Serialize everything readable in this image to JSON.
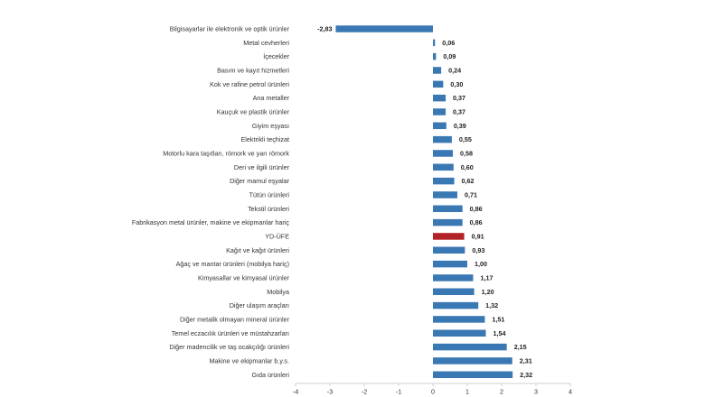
{
  "chart_data": {
    "type": "bar",
    "orientation": "horizontal",
    "title": "",
    "xlabel": "",
    "ylabel": "",
    "xlim": [
      -4,
      4
    ],
    "xticks": [
      -4,
      -3,
      -2,
      -1,
      0,
      1,
      2,
      3,
      4
    ],
    "xtick_labels": [
      "-4",
      "-3",
      "-2",
      "-1",
      "0",
      "1",
      "2",
      "3",
      "4"
    ],
    "grid": false,
    "legend": "none",
    "colors": {
      "default": "#3a78b4",
      "highlight": "#b22126"
    },
    "highlight_category": "YD-ÜFE",
    "categories": [
      "Bilgisayarlar ile elektronik ve optik ürünler",
      "Metal cevherleri",
      "İçecekler",
      "Basım ve kayıt hizmetleri",
      "Kok ve rafine petrol ürünleri",
      "Ana metaller",
      "Kauçuk ve plastik ürünler",
      "Giyim eşyası",
      "Elektrikli teçhizat",
      "Motorlu kara taşıtları, römork ve yarı römork",
      "Deri ve ilgili ürünler",
      "Diğer mamul eşyalar",
      "Tütün ürünleri",
      "Tekstil ürünleri",
      "Fabrikasyon metal ürünler, makine ve ekipmanlar hariç",
      "YD-ÜFE",
      "Kağıt ve kağıt ürünleri",
      "Ağaç ve mantar ürünleri (mobilya hariç)",
      "Kimyasallar ve kimyasal ürünler",
      "Mobilya",
      "Diğer ulaşım araçları",
      "Diğer metalik olmayan mineral ürünler",
      "Temel eczacılık ürünleri ve müstahzarları",
      "Diğer madencilik ve taş ocakçılığı ürünleri",
      "Makine ve ekipmanlar b.y.s.",
      "Gıda ürünleri"
    ],
    "values": [
      -2.83,
      0.06,
      0.09,
      0.24,
      0.3,
      0.37,
      0.37,
      0.39,
      0.55,
      0.58,
      0.6,
      0.62,
      0.71,
      0.86,
      0.86,
      0.91,
      0.93,
      1.0,
      1.17,
      1.2,
      1.32,
      1.51,
      1.54,
      2.15,
      2.31,
      2.32
    ],
    "value_labels": [
      "-2,83",
      "0,06",
      "0,09",
      "0,24",
      "0,30",
      "0,37",
      "0,37",
      "0,39",
      "0,55",
      "0,58",
      "0,60",
      "0,62",
      "0,71",
      "0,86",
      "0,86",
      "0,91",
      "0,93",
      "1,00",
      "1,17",
      "1,20",
      "1,32",
      "1,51",
      "1,54",
      "2,15",
      "2,31",
      "2,32"
    ]
  }
}
